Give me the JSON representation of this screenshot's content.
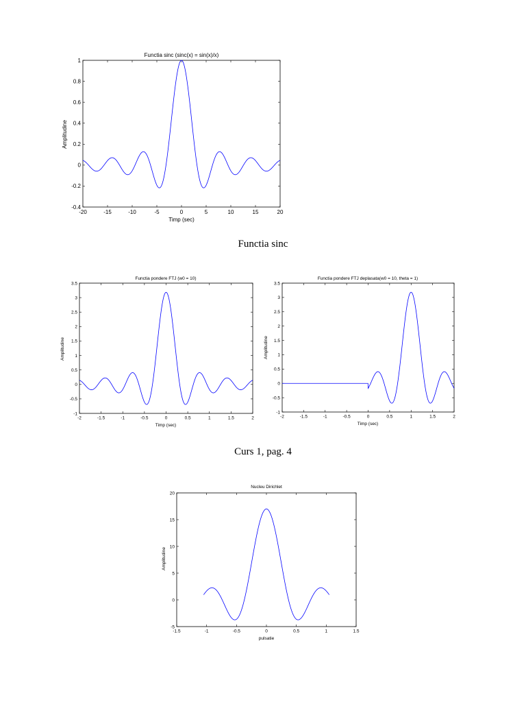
{
  "captions": {
    "sinc": "Functia sinc",
    "curs": "Curs 1, pag. 4"
  },
  "chart_data": [
    {
      "type": "line",
      "title": "Functia sinc (sinc(x) = sin(x)/x)",
      "xlabel": "Timp (sec)",
      "ylabel": "Amplitudine",
      "xlim": [
        -20,
        20
      ],
      "ylim": [
        -0.4,
        1
      ],
      "xticks": [
        -20,
        -15,
        -10,
        -5,
        0,
        5,
        10,
        15,
        20
      ],
      "yticks": [
        -0.4,
        -0.2,
        0,
        0.2,
        0.4,
        0.6,
        0.8,
        1
      ],
      "grid": false,
      "line_color": "#0000ff",
      "series": [
        {
          "function": "sin(x)/x",
          "x_range": [
            -20,
            20
          ]
        }
      ]
    },
    {
      "type": "line",
      "title": "Functia pondere FTJ (w0 = 10)",
      "xlabel": "Timp (sec)",
      "ylabel": "Amplitudine",
      "xlim": [
        -2,
        2
      ],
      "ylim": [
        -1,
        3.5
      ],
      "xticks": [
        -2,
        -1.5,
        -1,
        -0.5,
        0,
        0.5,
        1,
        1.5,
        2
      ],
      "yticks": [
        -1,
        -0.5,
        0,
        0.5,
        1,
        1.5,
        2,
        2.5,
        3,
        3.5
      ],
      "grid": false,
      "line_color": "#0000ff",
      "series": [
        {
          "function": "sin(10t)/(pi t)",
          "x_range": [
            -2,
            2
          ]
        }
      ]
    },
    {
      "type": "line",
      "title": "Functia pondere FTJ deplasata(w0 = 10, theta = 1)",
      "xlabel": "Timp (sec)",
      "ylabel": "Amplitudine",
      "xlim": [
        -2,
        2
      ],
      "ylim": [
        -1,
        3.5
      ],
      "xticks": [
        -2,
        -1.5,
        -1,
        -0.5,
        0,
        0.5,
        1,
        1.5,
        2
      ],
      "yticks": [
        -1,
        -0.5,
        0,
        0.5,
        1,
        1.5,
        2,
        2.5,
        3,
        3.5
      ],
      "grid": false,
      "line_color": "#0000ff",
      "series": [
        {
          "function": "sin(10(t-1))/(pi (t-1)) for t >= 0, 0 for t < 0",
          "x_range": [
            -2,
            2
          ]
        }
      ]
    },
    {
      "type": "line",
      "title": "Nucleu Dirichlet",
      "xlabel": "pulsatie",
      "ylabel": "Amplitudine",
      "xlim": [
        -1.5,
        1.5
      ],
      "ylim": [
        -5,
        20
      ],
      "xticks": [
        -1.5,
        -1,
        -0.5,
        0,
        0.5,
        1,
        1.5
      ],
      "yticks": [
        -5,
        0,
        5,
        10,
        15,
        20
      ],
      "grid": false,
      "line_color": "#0000ff",
      "series": [
        {
          "function": "sin(8.5 w)/sin(w/2)",
          "x_range": [
            -1.05,
            1.05
          ]
        }
      ]
    }
  ]
}
